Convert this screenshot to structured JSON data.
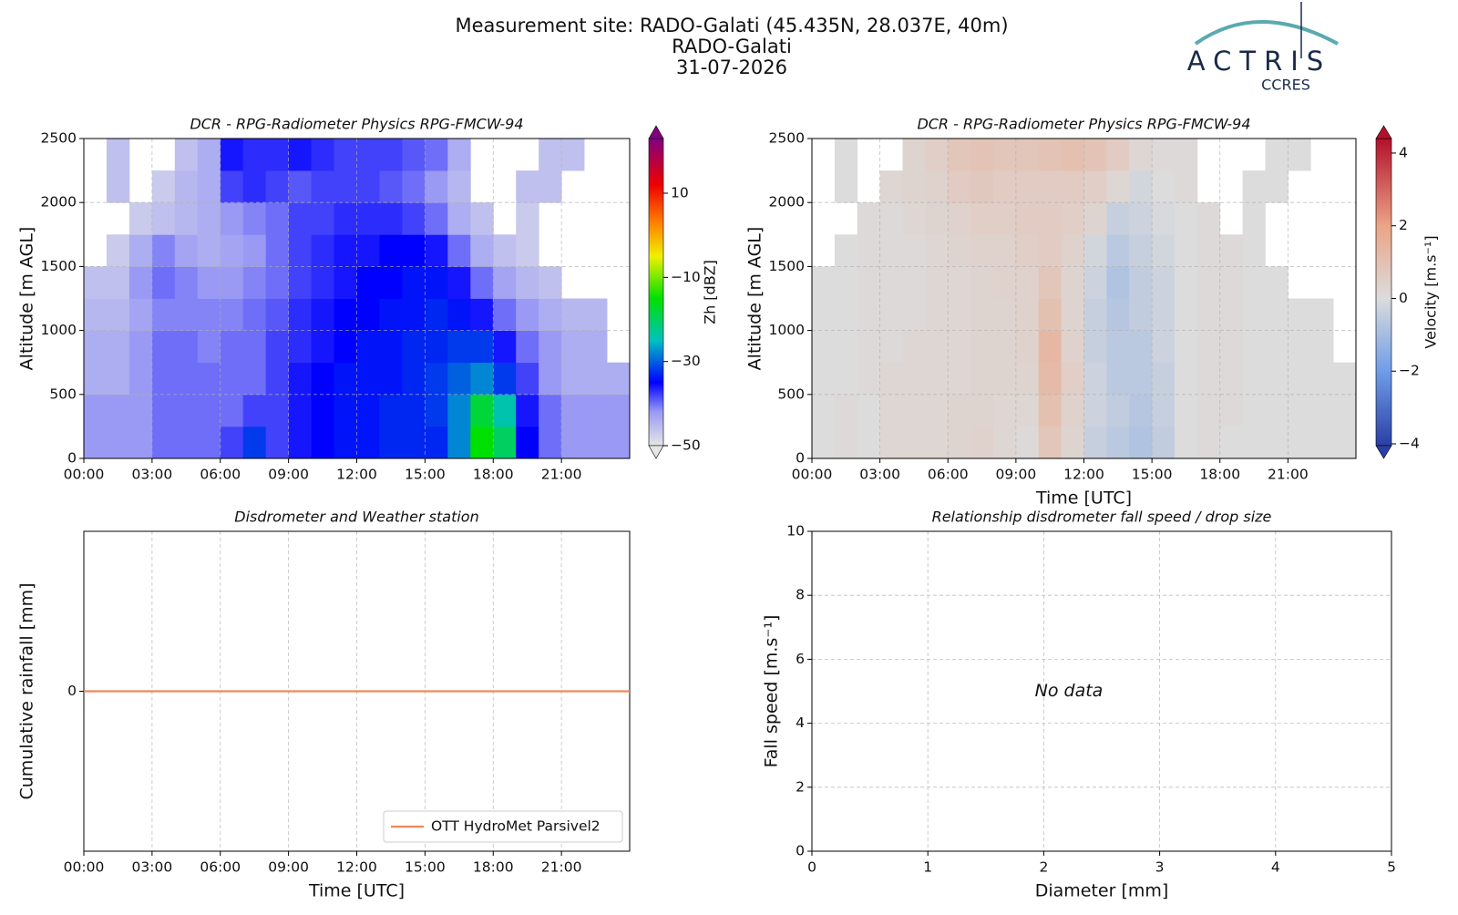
{
  "header": {
    "title": [
      "Measurement site: RADO-Galati (45.435N, 28.037E, 40m)",
      "RADO-Galati",
      "31-07-2026"
    ],
    "logo": "ACTRIS",
    "logo_subtitle": "CCRES"
  },
  "chart_data": [
    {
      "type": "heatmap",
      "title": "DCR - RPG-Radiometer Physics RPG-FMCW-94",
      "ylabel": "Altitude [m AGL]",
      "xlim": [
        0,
        24
      ],
      "xticks": [
        {
          "value": 0,
          "label": "00:00"
        },
        {
          "value": 3,
          "label": "03:00"
        },
        {
          "value": 6,
          "label": "06:00"
        },
        {
          "value": 9,
          "label": "09:00"
        },
        {
          "value": 12,
          "label": "12:00"
        },
        {
          "value": 15,
          "label": "15:00"
        },
        {
          "value": 18,
          "label": "18:00"
        },
        {
          "value": 21,
          "label": "21:00"
        }
      ],
      "ylim": [
        0,
        2500
      ],
      "yticks": [
        0,
        500,
        1000,
        1500,
        2000,
        2500
      ],
      "grid": true,
      "x_bins": [
        0,
        1,
        2,
        3,
        4,
        5,
        6,
        7,
        8,
        9,
        10,
        11,
        12,
        13,
        14,
        15,
        16,
        17,
        18,
        19,
        20,
        21,
        22,
        23,
        24
      ],
      "y_bins": [
        0,
        250,
        500,
        750,
        1000,
        1250,
        1500,
        1750,
        2000,
        2250,
        2500
      ],
      "values": [
        [
          -42,
          -42,
          -42,
          -40,
          -40,
          -40,
          -38,
          -32,
          -38,
          -36,
          -35,
          -34,
          -34,
          -33,
          -33,
          -33,
          -28,
          -15,
          -20,
          -35,
          -40,
          -42,
          -42,
          -42
        ],
        [
          -42,
          -42,
          -42,
          -40,
          -40,
          -40,
          -40,
          -38,
          -38,
          -36,
          -35,
          -34,
          -34,
          -33,
          -33,
          -32,
          -28,
          -18,
          -24,
          -36,
          -40,
          -42,
          -42,
          -42
        ],
        [
          -44,
          -44,
          -42,
          -40,
          -40,
          -40,
          -40,
          -40,
          -38,
          -36,
          -35,
          -34,
          -34,
          -34,
          -33,
          -32,
          -30,
          -28,
          -32,
          -38,
          -42,
          -44,
          -44,
          -44
        ],
        [
          -44,
          -44,
          -42,
          -40,
          -40,
          -41,
          -40,
          -40,
          -38,
          -37,
          -36,
          -35,
          -34,
          -34,
          -33,
          -33,
          -32,
          -32,
          -36,
          -40,
          -42,
          -44,
          -44,
          null
        ],
        [
          -45,
          -45,
          -43,
          -41,
          -41,
          -41,
          -41,
          -40,
          -39,
          -37,
          -36,
          -35,
          -35,
          -34,
          -34,
          -33,
          -34,
          -36,
          -40,
          -42,
          -44,
          -45,
          -45,
          null
        ],
        [
          -46,
          -46,
          -42,
          -40,
          -41,
          -42,
          -42,
          -41,
          -40,
          -38,
          -37,
          -36,
          -35,
          -35,
          -34,
          -34,
          -36,
          -40,
          -43,
          -45,
          -46,
          null,
          null,
          null
        ],
        [
          null,
          -47,
          -44,
          -41,
          -43,
          -44,
          -43,
          -42,
          -40,
          -38,
          -37,
          -36,
          -36,
          -35,
          -35,
          -36,
          -40,
          -44,
          -46,
          -47,
          null,
          null,
          null,
          null
        ],
        [
          null,
          null,
          -47,
          -46,
          -45,
          -44,
          -42,
          -41,
          -40,
          -38,
          -38,
          -37,
          -37,
          -37,
          -38,
          -40,
          -44,
          -46,
          null,
          -47,
          null,
          null,
          null,
          null
        ],
        [
          null,
          -46,
          null,
          -47,
          -45,
          -44,
          -38,
          -37,
          -38,
          -39,
          -38,
          -38,
          -38,
          -39,
          -40,
          -42,
          -45,
          null,
          null,
          -46,
          -46,
          null,
          null,
          null
        ],
        [
          null,
          -46,
          null,
          null,
          -46,
          -44,
          -36,
          -37,
          -37,
          -36,
          -37,
          -38,
          -38,
          -38,
          -39,
          -40,
          -44,
          null,
          null,
          null,
          -46,
          -46,
          null,
          null
        ]
      ],
      "clim": [
        -50,
        23
      ],
      "clabel": "Zh [dBZ]",
      "cticks": [
        {
          "value": -50,
          "label": "−50"
        },
        {
          "value": -30,
          "label": "−30"
        },
        {
          "value": -10,
          "label": "−10"
        },
        10
      ],
      "colorscale": [
        [
          -50,
          "#e6e6e6"
        ],
        [
          -42,
          "#9a9af5"
        ],
        [
          -35,
          "#0000ff"
        ],
        [
          -25,
          "#00c0c0"
        ],
        [
          -15,
          "#00e000"
        ],
        [
          -5,
          "#f0f000"
        ],
        [
          3,
          "#ff8000"
        ],
        [
          12,
          "#ee0000"
        ],
        [
          23,
          "#800080"
        ]
      ]
    },
    {
      "type": "heatmap",
      "title": "DCR - RPG-Radiometer Physics RPG-FMCW-94",
      "xlabel": "Time [UTC]",
      "ylabel": "Altitude [m AGL]",
      "xlim": [
        0,
        24
      ],
      "xticks": [
        {
          "value": 0,
          "label": "00:00"
        },
        {
          "value": 3,
          "label": "03:00"
        },
        {
          "value": 6,
          "label": "06:00"
        },
        {
          "value": 9,
          "label": "09:00"
        },
        {
          "value": 12,
          "label": "12:00"
        },
        {
          "value": 15,
          "label": "15:00"
        },
        {
          "value": 18,
          "label": "18:00"
        },
        {
          "value": 21,
          "label": "21:00"
        }
      ],
      "ylim": [
        0,
        2500
      ],
      "yticks": [
        0,
        500,
        1000,
        1500,
        2000,
        2500
      ],
      "grid": true,
      "x_bins": [
        0,
        1,
        2,
        3,
        4,
        5,
        6,
        7,
        8,
        9,
        10,
        11,
        12,
        13,
        14,
        15,
        16,
        17,
        18,
        19,
        20,
        21,
        22,
        23,
        24
      ],
      "y_bins": [
        0,
        250,
        500,
        750,
        1000,
        1250,
        1500,
        1750,
        2000,
        2250,
        2500
      ],
      "values": [
        [
          0,
          0.1,
          0,
          0.2,
          0.2,
          0.2,
          0.3,
          0.4,
          0.2,
          0.1,
          0.8,
          0.3,
          -0.4,
          -0.6,
          -0.8,
          -0.5,
          0,
          0.1,
          0,
          0,
          0,
          0,
          0,
          0
        ],
        [
          0,
          0.1,
          0,
          0.2,
          0.2,
          0.2,
          0.3,
          0.3,
          0.2,
          0.2,
          1.0,
          0.4,
          -0.3,
          -0.5,
          -0.7,
          -0.4,
          0,
          0.1,
          0.1,
          0,
          0,
          0,
          0,
          0
        ],
        [
          0,
          0,
          0.1,
          0.2,
          0.2,
          0.2,
          0.2,
          0.3,
          0.3,
          0.3,
          1.2,
          0.5,
          -0.3,
          -0.6,
          -0.6,
          -0.4,
          0,
          0.1,
          0.1,
          0,
          0,
          0,
          0,
          0
        ],
        [
          0,
          0,
          0.1,
          0.1,
          0.2,
          0.2,
          0.2,
          0.3,
          0.3,
          0.4,
          1.3,
          0.4,
          -0.4,
          -0.6,
          -0.6,
          -0.3,
          0,
          0.1,
          0.1,
          0,
          0,
          0,
          0,
          null
        ],
        [
          0,
          0,
          0.1,
          0.1,
          0.1,
          0.2,
          0.2,
          0.3,
          0.3,
          0.4,
          1.0,
          0.3,
          -0.4,
          -0.7,
          -0.5,
          -0.3,
          0,
          0.1,
          0.1,
          0,
          0,
          0,
          0,
          null
        ],
        [
          0,
          0,
          0.1,
          0.1,
          0.1,
          0.2,
          0.2,
          0.3,
          0.4,
          0.4,
          0.8,
          0.3,
          -0.3,
          -0.8,
          -0.5,
          -0.3,
          0,
          0.1,
          0.1,
          0,
          0,
          null,
          null,
          null
        ],
        [
          null,
          0,
          0.1,
          0.1,
          0.1,
          0.2,
          0.3,
          0.4,
          0.4,
          0.5,
          0.6,
          0.4,
          -0.2,
          -0.6,
          -0.4,
          -0.2,
          0,
          0.1,
          0.1,
          0,
          null,
          null,
          null,
          null
        ],
        [
          null,
          null,
          0.1,
          0.1,
          0.2,
          0.3,
          0.4,
          0.5,
          0.5,
          0.6,
          0.6,
          0.5,
          0.3,
          -0.4,
          -0.3,
          -0.1,
          0,
          0.1,
          null,
          0,
          null,
          null,
          null,
          null
        ],
        [
          null,
          0,
          null,
          0.2,
          0.3,
          0.4,
          0.6,
          0.7,
          0.6,
          0.6,
          0.6,
          0.6,
          0.5,
          0.2,
          -0.2,
          0,
          0.1,
          null,
          null,
          0,
          0,
          null,
          null,
          null
        ],
        [
          null,
          0,
          null,
          null,
          0.3,
          0.5,
          0.8,
          0.9,
          0.8,
          0.8,
          0.9,
          1.0,
          0.9,
          0.6,
          0.2,
          0.1,
          0.1,
          null,
          null,
          null,
          0,
          0,
          null,
          null
        ]
      ],
      "clim": [
        -4.05,
        4.4
      ],
      "clabel": "Velocity [m.s⁻¹]",
      "cticks": [
        {
          "value": -4,
          "label": "−4"
        },
        {
          "value": -2,
          "label": "−2"
        },
        0,
        2,
        4
      ],
      "colorscale": [
        [
          -4.05,
          "#2a3fa5"
        ],
        [
          -2,
          "#6f9de8"
        ],
        [
          0,
          "#dcdcdc"
        ],
        [
          2,
          "#eba486"
        ],
        [
          4.4,
          "#b2102b"
        ]
      ]
    },
    {
      "type": "line",
      "title": "Disdrometer and Weather station",
      "xlabel": "Time [UTC]",
      "ylabel": "Cumulative rainfall [mm]",
      "xlim": [
        0,
        24
      ],
      "xticks": [
        {
          "value": 0,
          "label": "00:00"
        },
        {
          "value": 3,
          "label": "03:00"
        },
        {
          "value": 6,
          "label": "06:00"
        },
        {
          "value": 9,
          "label": "09:00"
        },
        {
          "value": 12,
          "label": "12:00"
        },
        {
          "value": 15,
          "label": "15:00"
        },
        {
          "value": 18,
          "label": "18:00"
        },
        {
          "value": 21,
          "label": "21:00"
        }
      ],
      "ylim": [
        -0.055,
        0.055
      ],
      "yticks": [
        0
      ],
      "grid": true,
      "legend": "lower-right",
      "x": [
        0,
        24
      ],
      "series": [
        {
          "name": "OTT HydroMet Parsivel2",
          "color": "#f0875a",
          "values": [
            0,
            0
          ]
        }
      ]
    },
    {
      "type": "scatter",
      "title": "Relationship disdrometer fall speed / drop size",
      "xlabel": "Diameter [mm]",
      "ylabel": "Fall speed [m.s⁻¹]",
      "xlim": [
        0,
        5
      ],
      "xticks": [
        0,
        1,
        2,
        3,
        4,
        5
      ],
      "ylim": [
        0,
        10
      ],
      "yticks": [
        0,
        2,
        4,
        6,
        8,
        10
      ],
      "grid": true,
      "annotation": "No data",
      "x": [],
      "values": []
    }
  ]
}
